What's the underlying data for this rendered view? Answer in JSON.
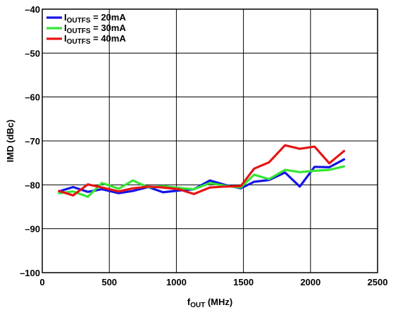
{
  "chart_data": {
    "type": "line",
    "xlabel": "f",
    "xlabel_sub": "OUT",
    "xlabel_unit": " (MHz)",
    "ylabel": "IMD (dBc)",
    "xlim": [
      0,
      2500
    ],
    "ylim": [
      -100,
      -40
    ],
    "x_ticks": [
      0,
      500,
      1000,
      1500,
      2000,
      2500
    ],
    "y_ticks": [
      -100,
      -90,
      -80,
      -70,
      -60,
      -50,
      -40
    ],
    "x_tick_labels": [
      "0",
      "500",
      "1000",
      "1500",
      "2000",
      "2500"
    ],
    "y_tick_labels": [
      "–100",
      "–90",
      "–80",
      "–70",
      "–60",
      "–50",
      "–40"
    ],
    "grid": true,
    "legend_position": "top-left",
    "series": [
      {
        "name_prefix": "I",
        "name_sub": "OUTFS",
        "name_suffix": " = 20mA",
        "color": "#1414e6",
        "x": [
          125,
          230,
          340,
          445,
          570,
          675,
          790,
          900,
          1020,
          1130,
          1250,
          1360,
          1480,
          1580,
          1690,
          1810,
          1920,
          2030,
          2140,
          2250
        ],
        "y": [
          -81.5,
          -80.5,
          -81.6,
          -81.0,
          -81.9,
          -81.4,
          -80.5,
          -81.7,
          -81.3,
          -81.0,
          -79.0,
          -80.0,
          -80.8,
          -79.3,
          -78.9,
          -77.2,
          -80.4,
          -75.9,
          -76.0,
          -74.2
        ]
      },
      {
        "name_prefix": "I",
        "name_sub": "OUTFS",
        "name_suffix": " = 30mA",
        "color": "#33e633",
        "x": [
          125,
          230,
          340,
          445,
          570,
          675,
          790,
          900,
          1020,
          1130,
          1250,
          1360,
          1480,
          1580,
          1690,
          1810,
          1920,
          2030,
          2140,
          2250
        ],
        "y": [
          -81.9,
          -81.5,
          -82.7,
          -79.6,
          -80.9,
          -79.0,
          -80.6,
          -80.3,
          -80.7,
          -81.0,
          -79.6,
          -80.2,
          -80.6,
          -77.7,
          -78.7,
          -76.6,
          -77.1,
          -76.8,
          -76.6,
          -75.8
        ]
      },
      {
        "name_prefix": "I",
        "name_sub": "OUTFS",
        "name_suffix": " = 40mA",
        "color": "#e61414",
        "x": [
          125,
          230,
          340,
          445,
          570,
          675,
          790,
          900,
          1020,
          1130,
          1250,
          1360,
          1480,
          1580,
          1690,
          1810,
          1920,
          2030,
          2140,
          2250
        ],
        "y": [
          -81.4,
          -82.4,
          -79.9,
          -80.6,
          -81.5,
          -80.8,
          -80.4,
          -80.6,
          -81.0,
          -82.1,
          -80.6,
          -80.4,
          -80.3,
          -76.3,
          -74.9,
          -71.0,
          -71.8,
          -71.3,
          -75.1,
          -72.3
        ]
      }
    ]
  }
}
